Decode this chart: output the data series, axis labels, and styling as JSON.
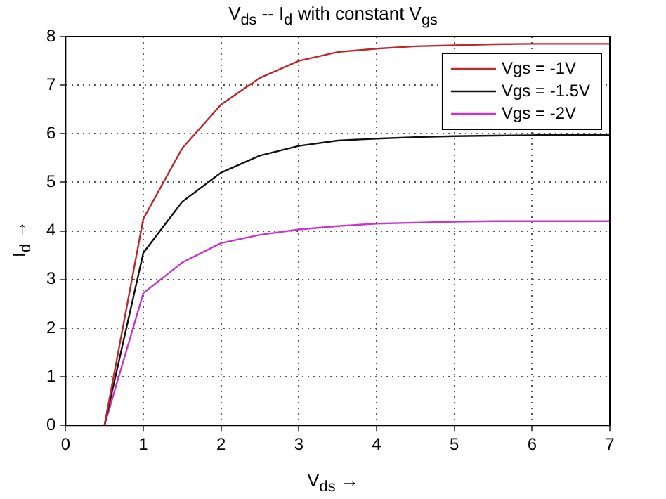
{
  "chart_data": {
    "type": "line",
    "title": "V$_{ds}$ -- I$_{d}$ with constant V$_{gs}$",
    "xlabel": "V$_{ds}$ →",
    "ylabel": "I$_{d}$ →",
    "x": [
      0.5,
      1,
      1.5,
      2,
      2.5,
      3,
      3.5,
      4,
      4.5,
      5,
      5.5,
      6,
      6.5,
      7
    ],
    "series": [
      {
        "name": "Vgs = -1V",
        "color": "#c0272d",
        "values": [
          0,
          4.25,
          5.7,
          6.6,
          7.15,
          7.5,
          7.68,
          7.75,
          7.8,
          7.82,
          7.84,
          7.85,
          7.85,
          7.85
        ]
      },
      {
        "name": "Vgs = -1.5V",
        "color": "#111111",
        "values": [
          0,
          3.55,
          4.6,
          5.2,
          5.55,
          5.75,
          5.86,
          5.9,
          5.93,
          5.95,
          5.96,
          5.97,
          5.98,
          5.98
        ]
      },
      {
        "name": "Vgs = -2V",
        "color": "#cc33cc",
        "values": [
          0,
          2.72,
          3.35,
          3.75,
          3.92,
          4.03,
          4.1,
          4.15,
          4.17,
          4.19,
          4.2,
          4.2,
          4.2,
          4.2
        ]
      }
    ],
    "xlim": [
      0,
      7
    ],
    "xticks": [
      0,
      1,
      2,
      3,
      4,
      5,
      6,
      7
    ],
    "ylim": [
      0,
      8
    ],
    "yticks": [
      0,
      1,
      2,
      3,
      4,
      5,
      6,
      7,
      8
    ],
    "grid": true,
    "legend": "top right",
    "marker": "none",
    "line_style": "solid"
  }
}
